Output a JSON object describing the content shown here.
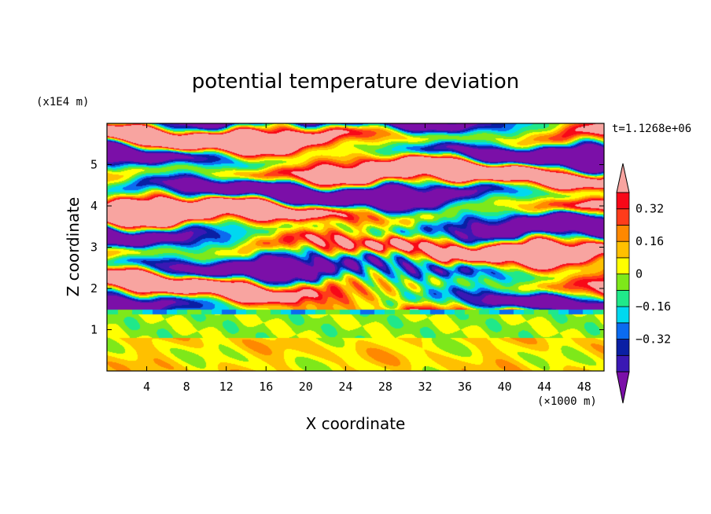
{
  "chart_data": {
    "type": "heatmap",
    "title": "potential temperature deviation",
    "xlabel": "X coordinate",
    "ylabel": "Z coordinate",
    "x_unit": "(×1000 m)",
    "y_unit": "(x1E4 m)",
    "time_label": "t=1.1268e+06",
    "xlim": [
      0,
      50
    ],
    "ylim": [
      0,
      6
    ],
    "x_ticks": [
      "4",
      "8",
      "12",
      "16",
      "20",
      "24",
      "28",
      "32",
      "36",
      "40",
      "44",
      "48"
    ],
    "y_ticks": [
      "1",
      "2",
      "3",
      "4",
      "5"
    ],
    "x_tick_values": [
      4,
      8,
      12,
      16,
      20,
      24,
      28,
      32,
      36,
      40,
      44,
      48
    ],
    "y_tick_values": [
      1,
      2,
      3,
      4,
      5
    ],
    "colorbar": {
      "levels": [
        -0.48,
        -0.4,
        -0.32,
        -0.24,
        -0.16,
        -0.08,
        0,
        0.08,
        0.16,
        0.24,
        0.32,
        0.4
      ],
      "tick_labels": [
        "0.32",
        "0.16",
        "0",
        "−0.16",
        "−0.32"
      ],
      "tick_values": [
        0.32,
        0.16,
        0,
        -0.16,
        -0.32
      ],
      "colors": [
        "#7b0fa8",
        "#3a18b4",
        "#0a1fa4",
        "#0b6bf0",
        "#00d8f0",
        "#20e88a",
        "#7ee81a",
        "#ffff00",
        "#ffc000",
        "#ff8800",
        "#ff3c1a",
        "#f80818",
        "#f8a4a0"
      ],
      "extend": "both"
    }
  }
}
